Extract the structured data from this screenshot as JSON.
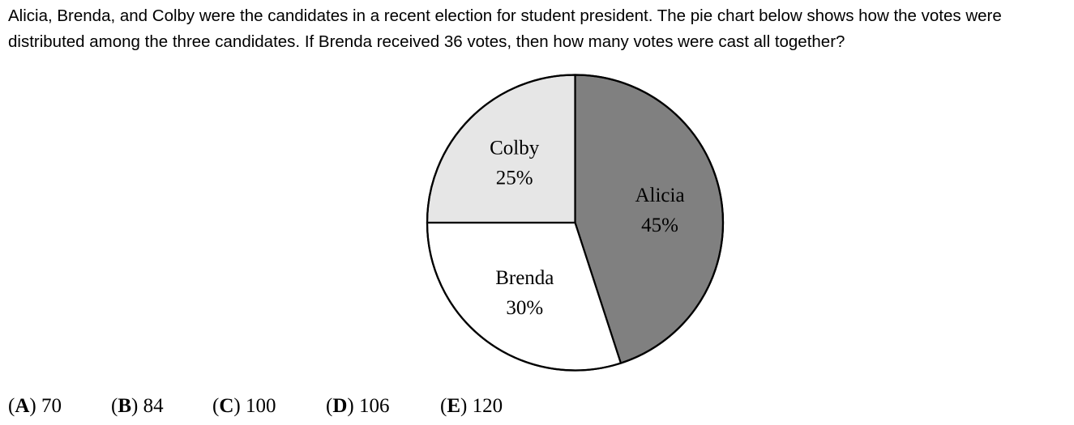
{
  "question": {
    "text": "Alicia, Brenda, and Colby were the candidates in a recent election for student president. The pie chart below shows how the votes were distributed among the three candidates. If Brenda received 36 votes, then how many votes were cast all together?"
  },
  "chart_data": {
    "type": "pie",
    "slices": [
      {
        "name": "Alicia",
        "percent_label": "45%",
        "value": 45,
        "color": "#808080"
      },
      {
        "name": "Brenda",
        "percent_label": "30%",
        "value": 30,
        "color": "#ffffff"
      },
      {
        "name": "Colby",
        "percent_label": "25%",
        "value": 25,
        "color": "#e6e6e6"
      }
    ],
    "start_angle_deg": 90,
    "direction": "clockwise",
    "outline_color": "#000000"
  },
  "choices": [
    {
      "letter": "A",
      "value": "70"
    },
    {
      "letter": "B",
      "value": "84"
    },
    {
      "letter": "C",
      "value": "100"
    },
    {
      "letter": "D",
      "value": "106"
    },
    {
      "letter": "E",
      "value": "120"
    }
  ]
}
